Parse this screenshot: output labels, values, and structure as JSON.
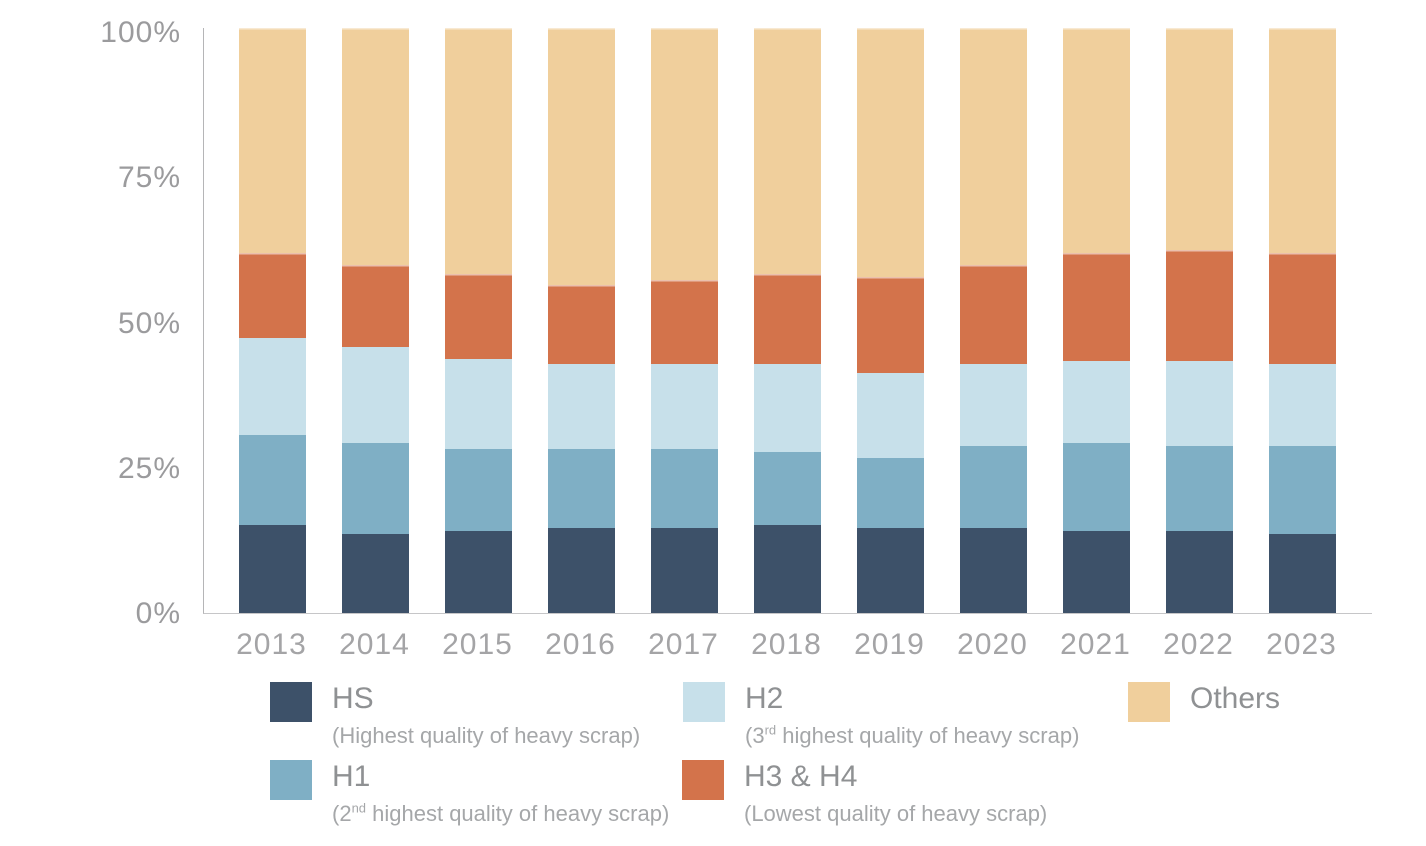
{
  "chart_data": {
    "type": "bar",
    "stacked": true,
    "title": "",
    "xlabel": "",
    "ylabel": "",
    "units": "%",
    "grid": false,
    "legend_position": "bottom",
    "categories": [
      "2013",
      "2014",
      "2015",
      "2016",
      "2017",
      "2018",
      "2019",
      "2020",
      "2021",
      "2022",
      "2023"
    ],
    "series": [
      {
        "name": "HS",
        "description": "Highest quality of heavy scrap",
        "color": "#3D5169",
        "values": [
          15,
          13.5,
          14,
          14.5,
          14.5,
          15,
          14.5,
          14.5,
          14,
          14,
          13.5
        ]
      },
      {
        "name": "H1",
        "description": "2nd highest quality of heavy scrap",
        "color": "#7FAFC5",
        "values": [
          15.5,
          15.5,
          14,
          13.5,
          13.5,
          12.5,
          12,
          14,
          15,
          14.5,
          15
        ]
      },
      {
        "name": "H2",
        "description": "3rd highest quality of heavy scrap",
        "color": "#C7E0EA",
        "values": [
          16.5,
          16.5,
          15.5,
          14.5,
          14.5,
          15,
          14.5,
          14,
          14,
          14.5,
          14
        ]
      },
      {
        "name": "H3 & H4",
        "description": "Lowest quality of heavy scrap",
        "color": "#D3734B",
        "values": [
          14.5,
          14,
          14.5,
          13.5,
          14.5,
          15.5,
          16.5,
          17,
          18.5,
          19,
          19
        ]
      },
      {
        "name": "Others",
        "description": "",
        "color": "#F0CF9C",
        "values": [
          38.5,
          40.5,
          42,
          44,
          43,
          42,
          42.5,
          40.5,
          38.5,
          38,
          38.5
        ]
      }
    ],
    "y_axis": {
      "min": 0,
      "max": 100,
      "ticks": [
        {
          "label": "100%",
          "value": 100
        },
        {
          "label": "75%",
          "value": 75
        },
        {
          "label": "50%",
          "value": 50
        },
        {
          "label": "25%",
          "value": 25
        },
        {
          "label": "0%",
          "value": 0
        }
      ]
    }
  },
  "legend": {
    "items": [
      {
        "label": "HS",
        "sub_prefix": "(Highest quality of heavy scrap)",
        "sub_sup": "",
        "sub_rest": "",
        "color": "#3D5169"
      },
      {
        "label": "H2",
        "sub_prefix": "(3",
        "sub_sup": "rd",
        "sub_rest": " highest quality of heavy scrap)",
        "color": "#C7E0EA"
      },
      {
        "label": "Others",
        "sub_prefix": "",
        "sub_sup": "",
        "sub_rest": "",
        "color": "#F0CF9C"
      },
      {
        "label": "H1",
        "sub_prefix": "(2",
        "sub_sup": "nd",
        "sub_rest": " highest quality of heavy scrap)",
        "color": "#7FAFC5"
      },
      {
        "label": "H3 & H4",
        "sub_prefix": "(Lowest quality of heavy scrap)",
        "sub_sup": "",
        "sub_rest": "",
        "color": "#D3734B"
      }
    ]
  }
}
